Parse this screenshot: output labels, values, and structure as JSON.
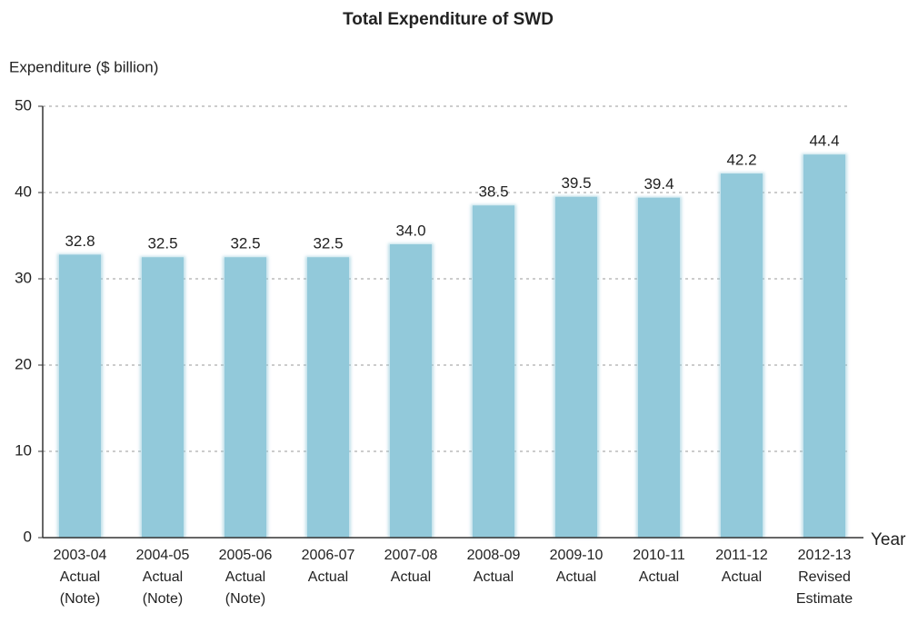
{
  "chart_data": {
    "type": "bar",
    "title": "Total Expenditure of SWD",
    "y_label": "Expenditure ($ billion)",
    "x_label": "Year",
    "categories": [
      [
        "2003-04",
        "Actual",
        "(Note)"
      ],
      [
        "2004-05",
        "Actual",
        "(Note)"
      ],
      [
        "2005-06",
        "Actual",
        "(Note)"
      ],
      [
        "2006-07",
        "Actual"
      ],
      [
        "2007-08",
        "Actual"
      ],
      [
        "2008-09",
        "Actual"
      ],
      [
        "2009-10",
        "Actual"
      ],
      [
        "2010-11",
        "Actual"
      ],
      [
        "2011-12",
        "Actual"
      ],
      [
        "2012-13",
        "Revised",
        "Estimate"
      ]
    ],
    "values": [
      32.8,
      32.5,
      32.5,
      32.5,
      34,
      38.5,
      39.5,
      39.4,
      42.2,
      44.4
    ],
    "value_labels": [
      "32.8",
      "32.5",
      "32.5",
      "32.5",
      "34.0",
      "38.5",
      "39.5",
      "39.4",
      "42.2",
      "44.4"
    ],
    "color": "#92c9da",
    "ylim": [
      0,
      50
    ],
    "yticks": [
      0,
      10,
      20,
      30,
      40,
      50
    ],
    "grid": true
  }
}
